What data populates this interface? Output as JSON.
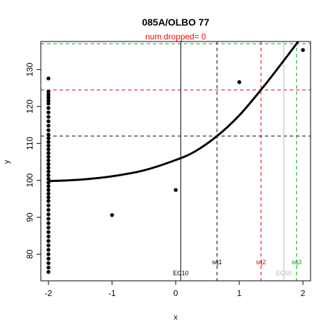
{
  "chart_data": {
    "type": "scatter",
    "title": "085A/OLBO 77",
    "subtitle": "num dropped= 0",
    "xlabel": "x",
    "ylabel": "y",
    "xlim": [
      -2.12,
      2.12
    ],
    "ylim": [
      72.8,
      137.6
    ],
    "x_ticks": [
      -2,
      -1,
      0,
      1,
      2
    ],
    "y_ticks": [
      80,
      90,
      100,
      110,
      120,
      130
    ],
    "grid": false,
    "colors": {
      "title": "#000000",
      "subtitle": "#ff0000",
      "points": "#000000",
      "curve": "#000000",
      "sq1": "#000000",
      "sq2": "#dd0000",
      "sq3": "#00aa00",
      "ec50": "#b8b8b8",
      "ec10": "#000000"
    },
    "points": [
      {
        "x": -2,
        "y": 127.6
      },
      {
        "x": -2,
        "y": 124.0
      },
      {
        "x": -2,
        "y": 123.2
      },
      {
        "x": -2,
        "y": 122.4
      },
      {
        "x": -2,
        "y": 121.6
      },
      {
        "x": -2,
        "y": 120.8
      },
      {
        "x": -2,
        "y": 119.6
      },
      {
        "x": -2,
        "y": 118.4
      },
      {
        "x": -2,
        "y": 117.2
      },
      {
        "x": -2,
        "y": 116.0
      },
      {
        "x": -2,
        "y": 114.8
      },
      {
        "x": -2,
        "y": 113.6
      },
      {
        "x": -2,
        "y": 112.4
      },
      {
        "x": -2,
        "y": 111.4
      },
      {
        "x": -2,
        "y": 110.4
      },
      {
        "x": -2,
        "y": 109.4
      },
      {
        "x": -2,
        "y": 108.4
      },
      {
        "x": -2,
        "y": 107.4
      },
      {
        "x": -2,
        "y": 106.4
      },
      {
        "x": -2,
        "y": 105.4
      },
      {
        "x": -2,
        "y": 104.4
      },
      {
        "x": -2,
        "y": 103.4
      },
      {
        "x": -2,
        "y": 102.4
      },
      {
        "x": -2,
        "y": 101.4
      },
      {
        "x": -2,
        "y": 100.4
      },
      {
        "x": -2,
        "y": 99.4
      },
      {
        "x": -2,
        "y": 98.4
      },
      {
        "x": -2,
        "y": 97.4
      },
      {
        "x": -2,
        "y": 96.4
      },
      {
        "x": -2,
        "y": 95.4
      },
      {
        "x": -2,
        "y": 94.4
      },
      {
        "x": -2,
        "y": 93.2
      },
      {
        "x": -2,
        "y": 92.0
      },
      {
        "x": -2,
        "y": 90.8
      },
      {
        "x": -2,
        "y": 89.6
      },
      {
        "x": -2,
        "y": 88.4
      },
      {
        "x": -2,
        "y": 87.2
      },
      {
        "x": -2,
        "y": 86.0
      },
      {
        "x": -2,
        "y": 84.8
      },
      {
        "x": -2,
        "y": 83.6
      },
      {
        "x": -2,
        "y": 82.4
      },
      {
        "x": -2,
        "y": 81.2
      },
      {
        "x": -2,
        "y": 80.0
      },
      {
        "x": -2,
        "y": 78.8
      },
      {
        "x": -2,
        "y": 77.6
      },
      {
        "x": -2,
        "y": 76.4
      },
      {
        "x": -2,
        "y": 75.2
      },
      {
        "x": -1,
        "y": 90.6
      },
      {
        "x": 0,
        "y": 97.4
      },
      {
        "x": 1,
        "y": 126.6
      },
      {
        "x": 2,
        "y": 135.3
      }
    ],
    "fit_curve": [
      {
        "x": -2.0,
        "y": 99.8
      },
      {
        "x": -1.5,
        "y": 100.2
      },
      {
        "x": -1.0,
        "y": 101.1
      },
      {
        "x": -0.5,
        "y": 102.7
      },
      {
        "x": 0.0,
        "y": 105.5
      },
      {
        "x": 0.3,
        "y": 107.8
      },
      {
        "x": 0.65,
        "y": 112.0
      },
      {
        "x": 1.0,
        "y": 117.6
      },
      {
        "x": 1.34,
        "y": 124.5
      },
      {
        "x": 1.6,
        "y": 130.2
      },
      {
        "x": 1.9,
        "y": 137.0
      },
      {
        "x": 1.95,
        "y": 138.1
      }
    ],
    "hlines": [
      {
        "name": "sq1",
        "y": 112.0
      },
      {
        "name": "sq2",
        "y": 124.5
      },
      {
        "name": "sq3",
        "y": 137.0
      }
    ],
    "vlines": [
      {
        "label": "EC10",
        "x": 0.08
      },
      {
        "label": "sq1",
        "x": 0.65
      },
      {
        "label": "sq2",
        "x": 1.34
      },
      {
        "label": "EC50",
        "x": 1.7
      },
      {
        "label": "sq3",
        "x": 1.9
      }
    ]
  }
}
